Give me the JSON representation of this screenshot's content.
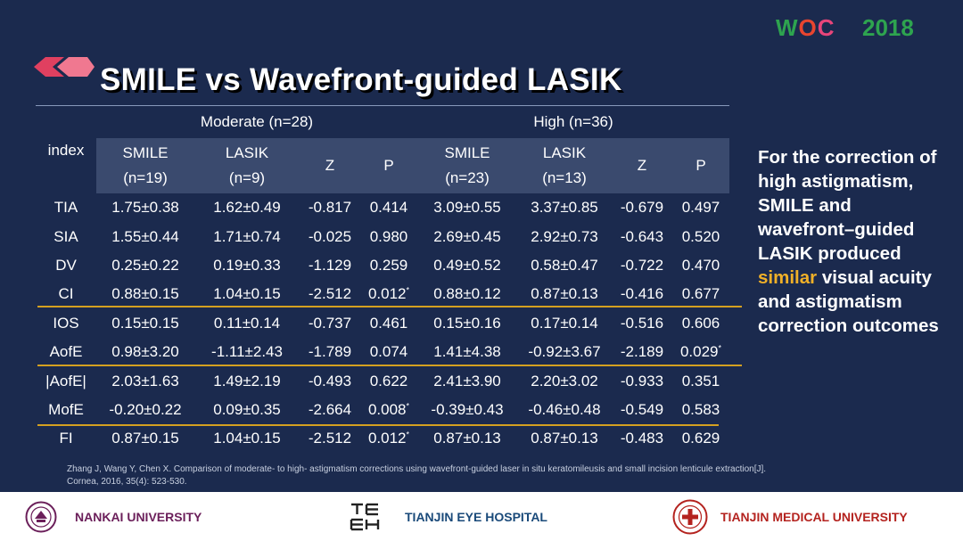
{
  "logo": {
    "w": "W",
    "o": "O",
    "c": "C",
    "year": "2018"
  },
  "title": "SMILE vs Wavefront-guided LASIK",
  "table": {
    "index_header": "index",
    "groups": [
      {
        "label": "Moderate (n=28)",
        "smile": "SMILE",
        "smile_n": "(n=19)",
        "lasik": "LASIK",
        "lasik_n": "(n=9)",
        "z": "Z",
        "p": "P"
      },
      {
        "label": "High (n=36)",
        "smile": "SMILE",
        "smile_n": "(n=23)",
        "lasik": "LASIK",
        "lasik_n": "(n=13)",
        "z": "Z",
        "p": "P"
      }
    ],
    "rows": [
      {
        "index": "TIA",
        "m_smile": "1.75±0.38",
        "m_lasik": "1.62±0.49",
        "m_z": "-0.817",
        "m_p": "0.414",
        "m_star": "",
        "h_smile": "3.09±0.55",
        "h_lasik": "3.37±0.85",
        "h_z": "-0.679",
        "h_p": "0.497",
        "h_star": ""
      },
      {
        "index": "SIA",
        "m_smile": "1.55±0.44",
        "m_lasik": "1.71±0.74",
        "m_z": "-0.025",
        "m_p": "0.980",
        "m_star": "",
        "h_smile": "2.69±0.45",
        "h_lasik": "2.92±0.73",
        "h_z": "-0.643",
        "h_p": "0.520",
        "h_star": ""
      },
      {
        "index": "DV",
        "m_smile": "0.25±0.22",
        "m_lasik": "0.19±0.33",
        "m_z": "-1.129",
        "m_p": "0.259",
        "m_star": "",
        "h_smile": "0.49±0.52",
        "h_lasik": "0.58±0.47",
        "h_z": "-0.722",
        "h_p": "0.470",
        "h_star": ""
      },
      {
        "index": "CI",
        "m_smile": "0.88±0.15",
        "m_lasik": "1.04±0.15",
        "m_z": "-2.512",
        "m_p": "0.012",
        "m_star": "*",
        "h_smile": "0.88±0.12",
        "h_lasik": "0.87±0.13",
        "h_z": "-0.416",
        "h_p": "0.677",
        "h_star": ""
      },
      {
        "index": "IOS",
        "m_smile": "0.15±0.15",
        "m_lasik": "0.11±0.14",
        "m_z": "-0.737",
        "m_p": "0.461",
        "m_star": "",
        "h_smile": "0.15±0.16",
        "h_lasik": "0.17±0.14",
        "h_z": "-0.516",
        "h_p": "0.606",
        "h_star": ""
      },
      {
        "index": "AofE",
        "m_smile": "0.98±3.20",
        "m_lasik": "-1.11±2.43",
        "m_z": "-1.789",
        "m_p": "0.074",
        "m_star": "",
        "h_smile": "1.41±4.38",
        "h_lasik": "-0.92±3.67",
        "h_z": "-2.189",
        "h_p": "0.029",
        "h_star": "*"
      },
      {
        "index": "|AofE|",
        "m_smile": "2.03±1.63",
        "m_lasik": "1.49±2.19",
        "m_z": "-0.493",
        "m_p": "0.622",
        "m_star": "",
        "h_smile": "2.41±3.90",
        "h_lasik": "2.20±3.02",
        "h_z": "-0.933",
        "h_p": "0.351",
        "h_star": ""
      },
      {
        "index": "MofE",
        "m_smile": "-0.20±0.22",
        "m_lasik": "0.09±0.35",
        "m_z": "-2.664",
        "m_p": "0.008",
        "m_star": "*",
        "h_smile": "-0.39±0.43",
        "h_lasik": "-0.46±0.48",
        "h_z": "-0.549",
        "h_p": "0.583",
        "h_star": ""
      },
      {
        "index": "FI",
        "m_smile": "0.87±0.15",
        "m_lasik": "1.04±0.15",
        "m_z": "-2.512",
        "m_p": "0.012",
        "m_star": "*",
        "h_smile": "0.87±0.13",
        "h_lasik": "0.87±0.13",
        "h_z": "-0.483",
        "h_p": "0.629",
        "h_star": ""
      }
    ]
  },
  "side_text": {
    "before": "For the correction of high astigmatism, SMILE and wavefront–guided LASIK produced",
    "highlight": "similar",
    "after": "visual acuity and astigmatism correction outcomes"
  },
  "reference": {
    "line1": "Zhang J, Wang Y, Chen X. Comparison of moderate- to high- astigmatism corrections using wavefront-guided laser in situ keratomileusis and small incision lenticule extraction[J].",
    "line2": "Cornea, 2016, 35(4): 523-530."
  },
  "footer": {
    "nankai": "NANKAI UNIVERSITY",
    "eye_hospital": "TIANJIN EYE HOSPITAL",
    "medical": "TIANJIN MEDICAL UNIVERSITY"
  },
  "colors": {
    "background": "#1b2a4e",
    "header_shade": "#3a4a6e",
    "gold_line": "#d4a020",
    "highlight": "#f0b028",
    "woc_green": "#2ea44f",
    "nankai_purple": "#6b1f5a",
    "eye_blue": "#1a4a7a",
    "medical_red": "#b4231f"
  }
}
